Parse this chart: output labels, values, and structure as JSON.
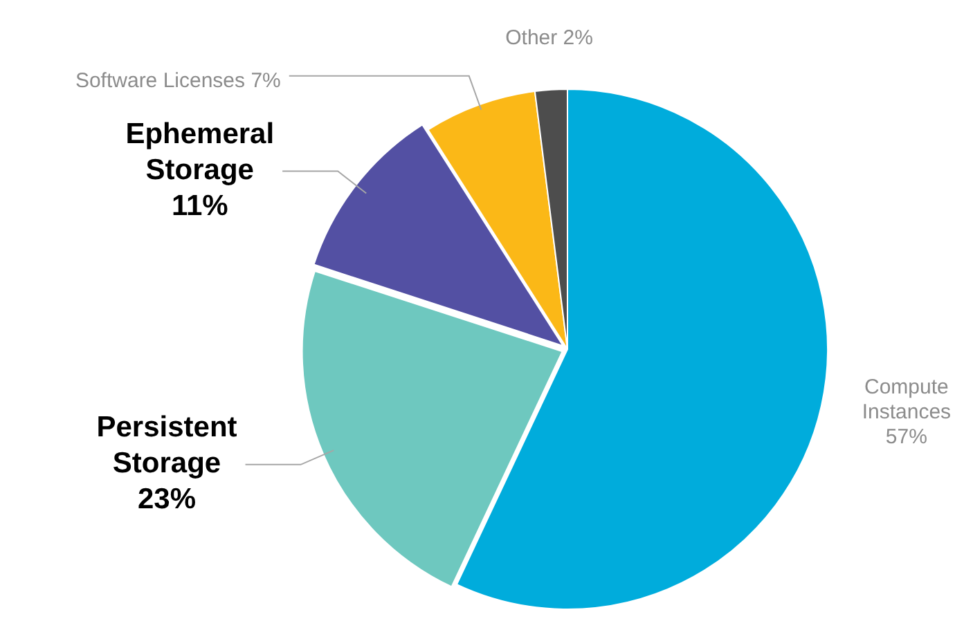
{
  "chart_data": {
    "type": "pie",
    "categories": [
      "Compute Instances",
      "Persistent Storage",
      "Ephemeral Storage",
      "Software Licenses",
      "Other"
    ],
    "values": [
      57,
      23,
      11,
      7,
      2
    ],
    "colors": [
      "#00acdc",
      "#6ec8bf",
      "#5350a3",
      "#fbb817",
      "#4d4d4d"
    ],
    "value_labels": [
      "57%",
      "23%",
      "11%",
      "7%",
      "2%"
    ],
    "legend": false
  }
}
